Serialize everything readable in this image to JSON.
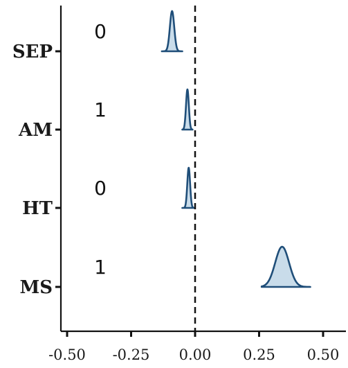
{
  "chart_data": {
    "type": "ridgeline",
    "title": "",
    "xlabel": "",
    "ylabel": "",
    "xlim": [
      -0.55,
      0.53
    ],
    "x_ticks": [
      -0.5,
      -0.25,
      0.0,
      0.25,
      0.5
    ],
    "x_tick_labels": [
      "-0.50",
      "-0.25",
      "0.00",
      "0.25",
      "0.50"
    ],
    "reference_line_x": 0.0,
    "reference_line_style": "dashed",
    "grid": false,
    "fill_color": "#c9dcea",
    "line_color": "#1f4e79",
    "categories": [
      "SEP",
      "AM",
      "HT",
      "MS"
    ],
    "row_annotations": [
      "0",
      "1",
      "0",
      "1"
    ],
    "series": [
      {
        "category": "SEP",
        "mean": -0.09,
        "sd": 0.0085,
        "range": [
          -0.13,
          -0.05
        ]
      },
      {
        "category": "AM",
        "mean": -0.03,
        "sd": 0.0055,
        "range": [
          -0.05,
          -0.01
        ]
      },
      {
        "category": "HT",
        "mean": -0.025,
        "sd": 0.0055,
        "range": [
          -0.05,
          -0.005
        ]
      },
      {
        "category": "MS",
        "mean": 0.34,
        "sd": 0.027,
        "range": [
          0.26,
          0.45
        ]
      }
    ]
  }
}
